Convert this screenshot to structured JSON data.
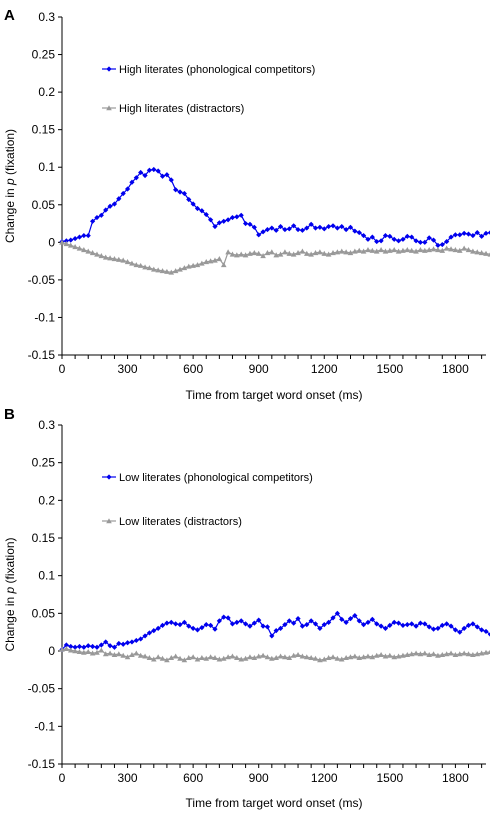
{
  "chart_data": [
    {
      "type": "line",
      "panel_label": "A",
      "xlabel": "Time from target word onset (ms)",
      "ylabel_prefix": "Change in",
      "ylabel_symbol": "p",
      "ylabel_suffix": "(fixation)",
      "ylim": [
        -0.15,
        0.3
      ],
      "yticks": [
        "0.3",
        "0.25",
        "0.2",
        "0.15",
        "0.1",
        "0.05",
        "0",
        "-0.05",
        "-0.1",
        "-0.15"
      ],
      "xlim": [
        0,
        1940
      ],
      "xticks": [
        "0",
        "300",
        "600",
        "900",
        "1200",
        "1500",
        "1800"
      ],
      "grid": false,
      "series": [
        {
          "name": "High literates (phonological competitors)",
          "color": "#0000ee",
          "marker": "diamond",
          "x_start": 0,
          "x_step": 20,
          "values": [
            0.001,
            0.002,
            0.003,
            0.005,
            0.007,
            0.009,
            0.009,
            0.028,
            0.033,
            0.036,
            0.043,
            0.048,
            0.051,
            0.058,
            0.065,
            0.071,
            0.08,
            0.086,
            0.093,
            0.089,
            0.096,
            0.097,
            0.095,
            0.088,
            0.09,
            0.083,
            0.07,
            0.067,
            0.065,
            0.057,
            0.051,
            0.045,
            0.042,
            0.037,
            0.03,
            0.021,
            0.026,
            0.028,
            0.03,
            0.033,
            0.034,
            0.036,
            0.025,
            0.024,
            0.02,
            0.01,
            0.014,
            0.017,
            0.019,
            0.016,
            0.021,
            0.017,
            0.018,
            0.022,
            0.017,
            0.016,
            0.019,
            0.024,
            0.019,
            0.02,
            0.018,
            0.021,
            0.022,
            0.019,
            0.021,
            0.017,
            0.02,
            0.015,
            0.013,
            0.009,
            0.004,
            0.007,
            0.001,
            0.002,
            0.009,
            0.008,
            0.004,
            0.002,
            0.004,
            0.008,
            0.007,
            0.002,
            0.0,
            0.0,
            0.006,
            0.003,
            -0.004,
            -0.003,
            0.001,
            0.007,
            0.01,
            0.01,
            0.012,
            0.011,
            0.009,
            0.013,
            0.008,
            0.012,
            0.013,
            0.012
          ]
        },
        {
          "name": "High literates (distractors)",
          "color": "#999999",
          "marker": "triangle",
          "x_start": 0,
          "x_step": 20,
          "values": [
            0.0,
            -0.002,
            -0.004,
            -0.006,
            -0.008,
            -0.01,
            -0.012,
            -0.014,
            -0.016,
            -0.018,
            -0.02,
            -0.021,
            -0.022,
            -0.023,
            -0.024,
            -0.026,
            -0.028,
            -0.03,
            -0.031,
            -0.033,
            -0.034,
            -0.036,
            -0.037,
            -0.038,
            -0.039,
            -0.04,
            -0.038,
            -0.036,
            -0.034,
            -0.032,
            -0.031,
            -0.03,
            -0.028,
            -0.026,
            -0.025,
            -0.024,
            -0.022,
            -0.03,
            -0.013,
            -0.016,
            -0.017,
            -0.016,
            -0.017,
            -0.015,
            -0.014,
            -0.015,
            -0.018,
            -0.014,
            -0.013,
            -0.017,
            -0.016,
            -0.013,
            -0.015,
            -0.016,
            -0.014,
            -0.012,
            -0.015,
            -0.016,
            -0.014,
            -0.013,
            -0.015,
            -0.016,
            -0.014,
            -0.013,
            -0.012,
            -0.013,
            -0.014,
            -0.012,
            -0.011,
            -0.012,
            -0.01,
            -0.011,
            -0.012,
            -0.01,
            -0.012,
            -0.011,
            -0.01,
            -0.012,
            -0.011,
            -0.01,
            -0.011,
            -0.012,
            -0.01,
            -0.011,
            -0.01,
            -0.009,
            -0.01,
            -0.011,
            -0.008,
            -0.009,
            -0.01,
            -0.011,
            -0.008,
            -0.01,
            -0.012,
            -0.013,
            -0.014,
            -0.015,
            -0.016,
            -0.018
          ]
        }
      ]
    },
    {
      "type": "line",
      "panel_label": "B",
      "xlabel": "Time from target word onset (ms)",
      "ylabel_prefix": "Change in",
      "ylabel_symbol": "p",
      "ylabel_suffix": "(fixation)",
      "ylim": [
        -0.15,
        0.3
      ],
      "yticks": [
        "0.3",
        "0.25",
        "0.2",
        "0.15",
        "0.1",
        "0.05",
        "0",
        "-0.05",
        "-0.1",
        "-0.15"
      ],
      "xlim": [
        0,
        1940
      ],
      "xticks": [
        "0",
        "300",
        "600",
        "900",
        "1200",
        "1500",
        "1800"
      ],
      "grid": false,
      "series": [
        {
          "name": "Low literates (phonological competitors)",
          "color": "#0000ee",
          "marker": "diamond",
          "x_start": 0,
          "x_step": 20,
          "values": [
            0.002,
            0.008,
            0.006,
            0.005,
            0.006,
            0.005,
            0.007,
            0.006,
            0.005,
            0.008,
            0.012,
            0.007,
            0.005,
            0.01,
            0.009,
            0.011,
            0.012,
            0.014,
            0.016,
            0.02,
            0.024,
            0.027,
            0.03,
            0.034,
            0.037,
            0.038,
            0.036,
            0.035,
            0.038,
            0.033,
            0.03,
            0.028,
            0.031,
            0.035,
            0.034,
            0.029,
            0.04,
            0.045,
            0.044,
            0.036,
            0.038,
            0.04,
            0.036,
            0.033,
            0.037,
            0.041,
            0.033,
            0.032,
            0.02,
            0.027,
            0.03,
            0.035,
            0.04,
            0.037,
            0.043,
            0.033,
            0.035,
            0.04,
            0.036,
            0.03,
            0.035,
            0.038,
            0.044,
            0.05,
            0.042,
            0.038,
            0.043,
            0.047,
            0.04,
            0.035,
            0.038,
            0.042,
            0.036,
            0.033,
            0.03,
            0.034,
            0.038,
            0.037,
            0.034,
            0.035,
            0.036,
            0.033,
            0.037,
            0.036,
            0.032,
            0.029,
            0.03,
            0.034,
            0.036,
            0.033,
            0.028,
            0.025,
            0.03,
            0.034,
            0.036,
            0.032,
            0.028,
            0.026,
            0.022,
            0.018
          ]
        },
        {
          "name": "Low literates (distractors)",
          "color": "#999999",
          "marker": "triangle",
          "x_start": 0,
          "x_step": 20,
          "values": [
            0.002,
            0.003,
            0.001,
            0.0,
            -0.001,
            -0.002,
            -0.001,
            -0.003,
            -0.002,
            0.001,
            -0.004,
            -0.003,
            -0.005,
            -0.004,
            -0.006,
            -0.008,
            -0.005,
            -0.003,
            -0.006,
            -0.007,
            -0.009,
            -0.011,
            -0.008,
            -0.01,
            -0.012,
            -0.009,
            -0.007,
            -0.01,
            -0.012,
            -0.009,
            -0.008,
            -0.011,
            -0.009,
            -0.01,
            -0.008,
            -0.009,
            -0.011,
            -0.01,
            -0.008,
            -0.007,
            -0.009,
            -0.011,
            -0.01,
            -0.008,
            -0.009,
            -0.007,
            -0.006,
            -0.008,
            -0.01,
            -0.009,
            -0.007,
            -0.008,
            -0.009,
            -0.006,
            -0.005,
            -0.007,
            -0.008,
            -0.009,
            -0.01,
            -0.012,
            -0.011,
            -0.009,
            -0.008,
            -0.01,
            -0.011,
            -0.009,
            -0.008,
            -0.007,
            -0.009,
            -0.008,
            -0.007,
            -0.008,
            -0.006,
            -0.005,
            -0.007,
            -0.006,
            -0.008,
            -0.007,
            -0.006,
            -0.005,
            -0.004,
            -0.003,
            -0.004,
            -0.003,
            -0.005,
            -0.004,
            -0.006,
            -0.005,
            -0.004,
            -0.003,
            -0.005,
            -0.004,
            -0.003,
            -0.004,
            -0.005,
            -0.004,
            -0.003,
            -0.002,
            -0.001,
            -0.002
          ]
        }
      ]
    }
  ]
}
